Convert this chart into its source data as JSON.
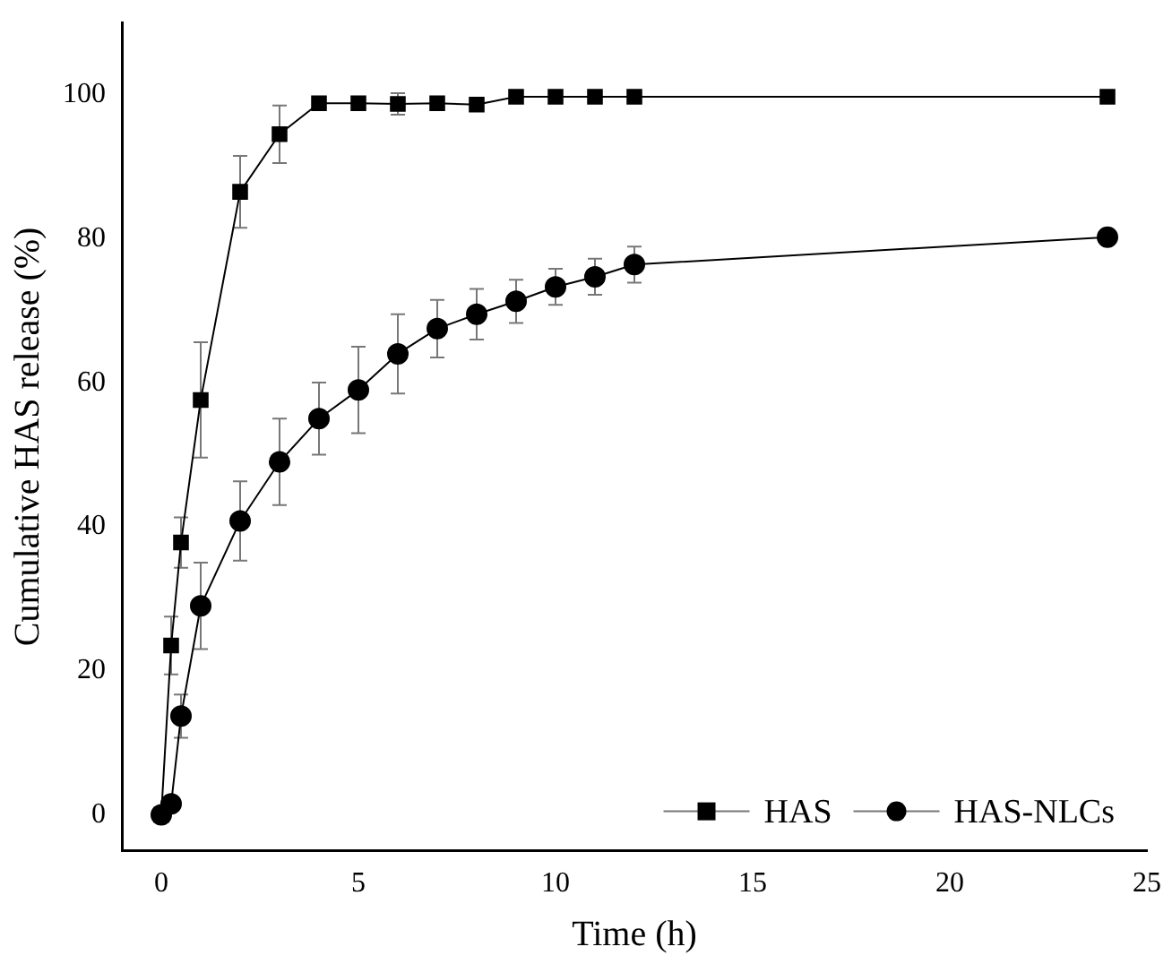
{
  "chart_data": {
    "type": "line",
    "xlabel": "Time (h)",
    "ylabel": "Cumulative HAS release (%)",
    "x": [
      0,
      0.25,
      0.5,
      1,
      2,
      3,
      4,
      5,
      6,
      7,
      8,
      9,
      10,
      11,
      12,
      24
    ],
    "series": [
      {
        "name": "HAS",
        "color": "#000000",
        "marker": "square",
        "values": [
          0,
          23.5,
          37.8,
          57.6,
          86.5,
          94.5,
          98.8,
          98.8,
          98.7,
          98.8,
          98.6,
          99.7,
          99.7,
          99.7,
          99.7,
          99.7
        ],
        "errors": [
          null,
          4,
          3.5,
          8,
          5,
          4,
          null,
          null,
          1.5,
          null,
          null,
          null,
          null,
          null,
          null,
          null
        ]
      },
      {
        "name": "HAS-NLCs",
        "color": "#000000",
        "marker": "circle",
        "values": [
          0,
          1.5,
          13.7,
          29,
          40.8,
          49,
          55,
          59,
          64,
          67.5,
          69.5,
          71.3,
          73.3,
          74.7,
          76.4,
          80.2
        ],
        "errors": [
          null,
          null,
          3,
          6,
          5.5,
          6,
          5,
          6,
          5.5,
          4,
          3.5,
          3,
          2.5,
          2.5,
          2.5,
          1
        ]
      }
    ],
    "xlim": [
      -1,
      25
    ],
    "xticks": [
      0,
      5,
      10,
      15,
      20,
      25
    ],
    "ylim": [
      -5,
      110
    ],
    "yticks": [
      0,
      20,
      40,
      60,
      80,
      100
    ],
    "grid": false,
    "legend": "bottom right",
    "line_style": "solid"
  }
}
